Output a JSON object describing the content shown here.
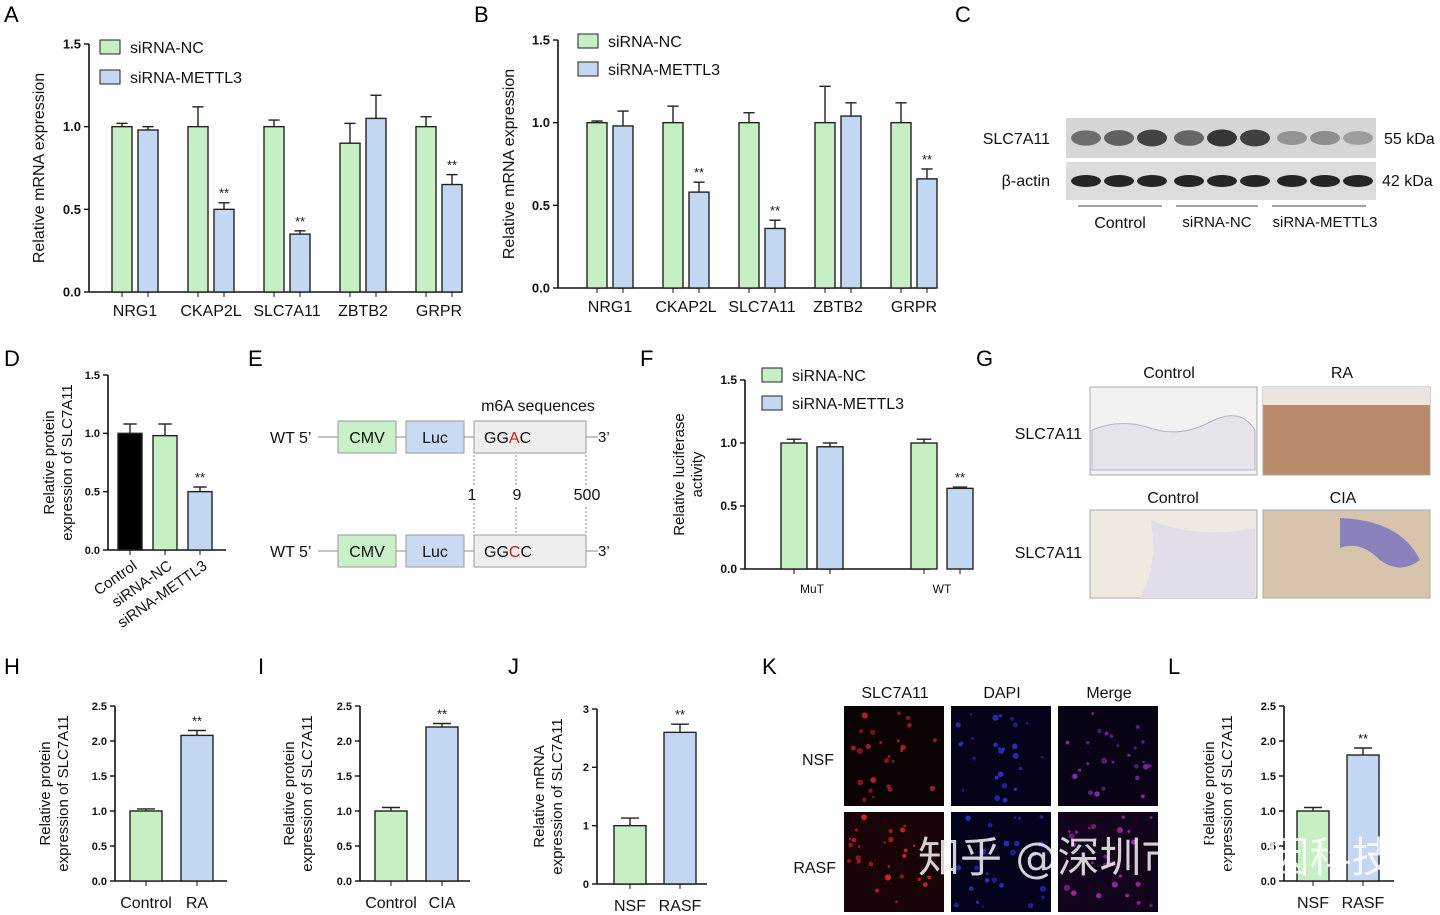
{
  "colors": {
    "nc": "#c6f0c4",
    "mettl": "#c4d7f2",
    "control": "#000000",
    "stroke": "#222222",
    "red": "#d11a1a",
    "cmv": "#c9f0c8",
    "luc": "#c9dbf2",
    "seq": "#eeeeee"
  },
  "panels": {
    "A": "A",
    "B": "B",
    "C": "C",
    "D": "D",
    "E": "E",
    "F": "F",
    "G": "G",
    "H": "H",
    "I": "I",
    "J": "J",
    "K": "K",
    "L": "L"
  },
  "legend": {
    "nc": "siRNA-NC",
    "mettl": "siRNA-METTL3"
  },
  "sig": "**",
  "chart_data": [
    {
      "id": "A",
      "type": "bar",
      "ylabel": "Relative mRNA expression",
      "ylim": [
        0,
        1.5
      ],
      "yticks": [
        "0.0",
        "0.5",
        "1.0",
        "1.5"
      ],
      "categories": [
        "NRG1",
        "CKAP2L",
        "SLC7A11",
        "ZBTB2",
        "GRPR"
      ],
      "series": [
        {
          "name": "siRNA-NC",
          "values": [
            1.0,
            1.0,
            1.0,
            0.9,
            1.0
          ],
          "errors": [
            0.02,
            0.12,
            0.04,
            0.12,
            0.06
          ]
        },
        {
          "name": "siRNA-METTL3",
          "values": [
            0.98,
            0.5,
            0.35,
            1.05,
            0.65
          ],
          "errors": [
            0.02,
            0.04,
            0.02,
            0.14,
            0.06
          ]
        }
      ],
      "sig": [
        false,
        true,
        true,
        false,
        true
      ]
    },
    {
      "id": "B",
      "type": "bar",
      "ylabel": "Relative mRNA expression",
      "ylim": [
        0,
        1.5
      ],
      "yticks": [
        "0.0",
        "0.5",
        "1.0",
        "1.5"
      ],
      "categories": [
        "NRG1",
        "CKAP2L",
        "SLC7A11",
        "ZBTB2",
        "GRPR"
      ],
      "series": [
        {
          "name": "siRNA-NC",
          "values": [
            1.0,
            1.0,
            1.0,
            1.0,
            1.0
          ],
          "errors": [
            0.01,
            0.1,
            0.06,
            0.22,
            0.12
          ]
        },
        {
          "name": "siRNA-METTL3",
          "values": [
            0.98,
            0.58,
            0.36,
            1.04,
            0.66
          ],
          "errors": [
            0.09,
            0.06,
            0.05,
            0.08,
            0.06
          ]
        }
      ],
      "sig": [
        false,
        true,
        true,
        false,
        true
      ]
    },
    {
      "id": "D",
      "type": "bar",
      "ylabel": "Relative protein expression of SLC7A11",
      "ylim": [
        0,
        1.5
      ],
      "yticks": [
        "0.0",
        "0.5",
        "1.0",
        "1.5"
      ],
      "categories": [
        "Control",
        "siRNA-NC",
        "siRNA-METTL3"
      ],
      "values": [
        1.0,
        0.98,
        0.5
      ],
      "errors": [
        0.08,
        0.1,
        0.04
      ],
      "sig": [
        false,
        false,
        true
      ]
    },
    {
      "id": "F",
      "type": "bar",
      "ylabel": "Relative luciferase activity",
      "ylim": [
        0,
        1.5
      ],
      "yticks": [
        "0.0",
        "0.5",
        "1.0",
        "1.5"
      ],
      "categories": [
        "MuT",
        "WT"
      ],
      "series": [
        {
          "name": "siRNA-NC",
          "values": [
            1.0,
            1.0
          ],
          "errors": [
            0.03,
            0.03
          ]
        },
        {
          "name": "siRNA-METTL3",
          "values": [
            0.97,
            0.64
          ],
          "errors": [
            0.03,
            0.01
          ]
        }
      ],
      "sig": [
        false,
        true
      ]
    },
    {
      "id": "H",
      "type": "bar",
      "ylabel": "Relative protein expression of SLC7A11",
      "ylim": [
        0,
        2.5
      ],
      "yticks": [
        "0.0",
        "0.5",
        "1.0",
        "1.5",
        "2.0",
        "2.5"
      ],
      "categories": [
        "Control",
        "RA"
      ],
      "values": [
        1.0,
        2.08
      ],
      "errors": [
        0.03,
        0.07
      ],
      "sig": [
        false,
        true
      ]
    },
    {
      "id": "I",
      "type": "bar",
      "ylabel": "Relative protein expression of SLC7A11",
      "ylim": [
        0,
        2.5
      ],
      "yticks": [
        "0.0",
        "0.5",
        "1.0",
        "1.5",
        "2.0",
        "2.5"
      ],
      "categories": [
        "Control",
        "CIA"
      ],
      "values": [
        1.0,
        2.2
      ],
      "errors": [
        0.05,
        0.05
      ],
      "sig": [
        false,
        true
      ]
    },
    {
      "id": "J",
      "type": "bar",
      "ylabel": "Relative mRNA expression of SLC7A11",
      "ylim": [
        0,
        3
      ],
      "yticks": [
        "0",
        "1",
        "2",
        "3"
      ],
      "categories": [
        "NSF",
        "RASF"
      ],
      "values": [
        1.0,
        2.6
      ],
      "errors": [
        0.13,
        0.14
      ],
      "sig": [
        false,
        true
      ]
    },
    {
      "id": "L",
      "type": "bar",
      "ylabel": "Relative protein expression of SLC7A11",
      "ylim": [
        0,
        2.5
      ],
      "yticks": [
        "0.0",
        "0.5",
        "1.0",
        "1.5",
        "2.0",
        "2.5"
      ],
      "categories": [
        "NSF",
        "RASF"
      ],
      "values": [
        1.0,
        1.8
      ],
      "errors": [
        0.05,
        0.1
      ],
      "sig": [
        false,
        true
      ]
    }
  ],
  "blot": {
    "row1": "SLC7A11",
    "row2": "β-actin",
    "kda1": "55 kDa",
    "kda2": "42 kDa",
    "groups": [
      "Control",
      "siRNA-NC",
      "siRNA-METTL3"
    ]
  },
  "construct": {
    "title": "m6A sequences",
    "wt": "WT 5’",
    "three": "3’",
    "cmv": "CMV",
    "luc": "Luc",
    "seq1": {
      "pre": "GG",
      "mut": "A",
      "post": "C"
    },
    "seq2": {
      "pre": "GG",
      "mut": "C",
      "post": "C"
    },
    "positions": [
      "1",
      "9",
      "500"
    ]
  },
  "ihc": {
    "rowlabel": "SLC7A11",
    "top": [
      "Control",
      "RA"
    ],
    "bottom": [
      "Control",
      "CIA"
    ]
  },
  "if": {
    "cols": [
      "SLC7A11",
      "DAPI",
      "Merge"
    ],
    "rows": [
      "NSF",
      "RASF"
    ]
  },
  "watermark": "知乎 @深圳市易基因科技"
}
